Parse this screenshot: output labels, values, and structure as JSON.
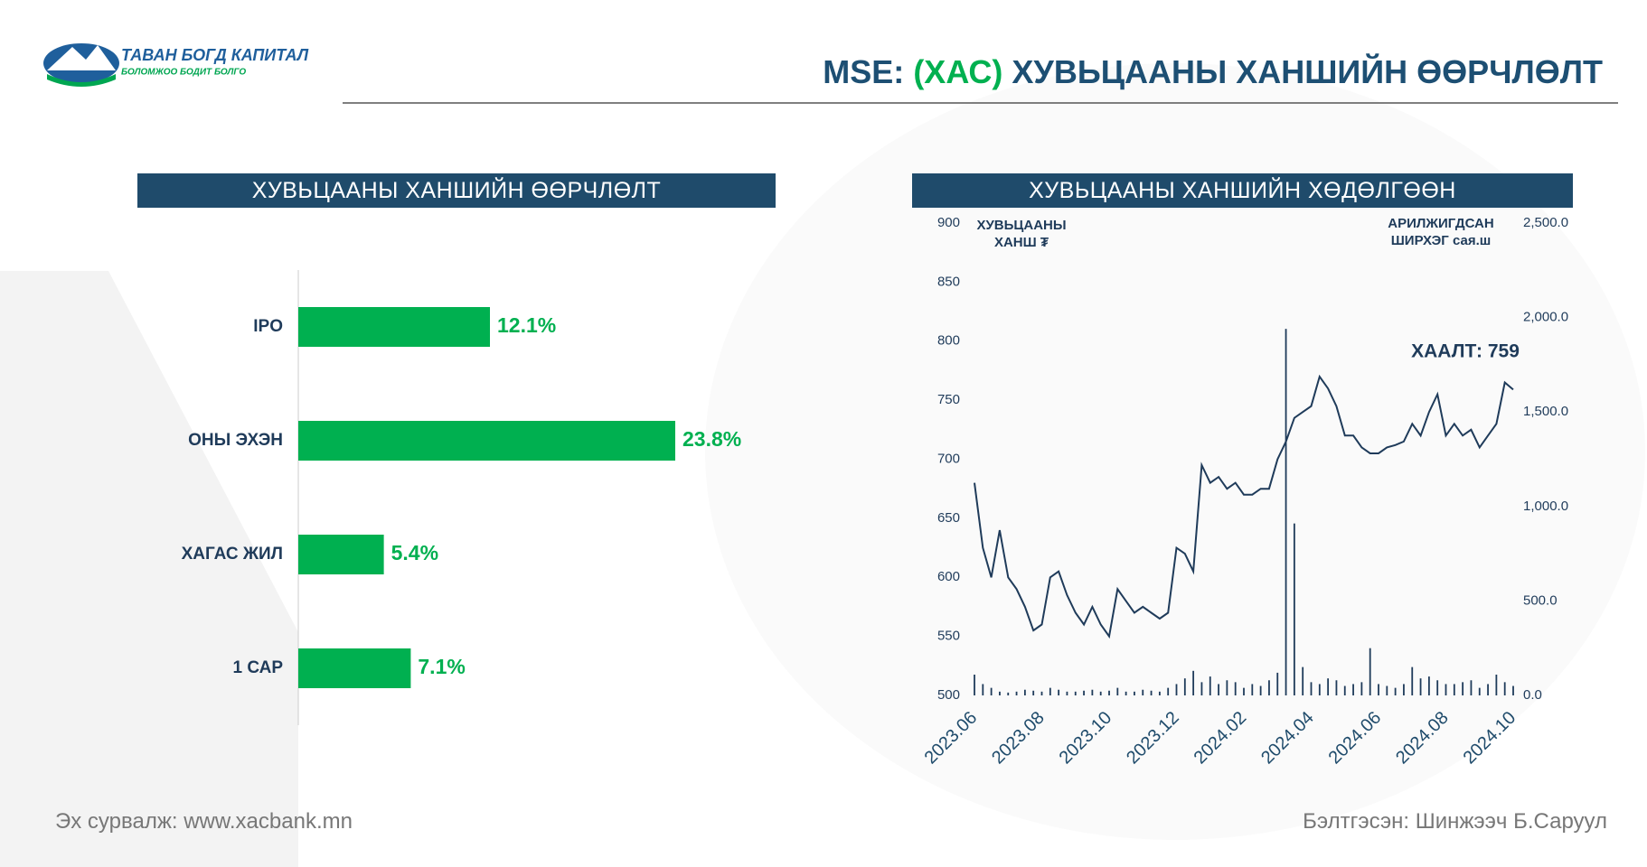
{
  "header": {
    "logo_name": "ТАВАН БОГД КАПИТАЛ",
    "logo_slogan": "БОЛОМЖОО БОДИТ БОЛГО",
    "title_prefix": "MSE:",
    "title_highlight": "(ХАС)",
    "title_rest": "ХУВЬЦААНЫ ХАНШИЙН ӨӨРЧЛӨЛТ"
  },
  "footer": {
    "source": "Эх сурвалж: www.xacbank.mn",
    "author": "Бэлтгэсэн: Шинжээч Б.Саруул"
  },
  "chart_data": [
    {
      "type": "bar",
      "orientation": "horizontal",
      "title": "ХУВЬЦААНЫ ХАНШИЙН ӨӨРЧЛӨЛТ",
      "categories": [
        "IPO",
        "ОНЫ ЭХЭН",
        "ХАГАС ЖИЛ",
        "1 САР"
      ],
      "values": [
        12.1,
        23.8,
        5.4,
        7.1
      ],
      "value_labels": [
        "12.1%",
        "23.8%",
        "5.4%",
        "7.1%"
      ],
      "color": "#00b050"
    },
    {
      "type": "line",
      "title": "ХУВЬЦААНЫ ХАНШИЙН ХӨДӨЛГӨӨН",
      "ylabel": "ХУВЬЦААНЫ ХАНШ ₮",
      "y2label": "АРИЛЖИГДСАН ШИРХЭГ сая.ш",
      "annotation": "ХААЛТ: 759",
      "categories": [
        "2023.06",
        null,
        null,
        null,
        null,
        null,
        null,
        null,
        "2023.08",
        null,
        null,
        null,
        null,
        null,
        null,
        null,
        "2023.10",
        null,
        null,
        null,
        null,
        null,
        null,
        null,
        "2023.12",
        null,
        null,
        null,
        null,
        null,
        null,
        null,
        "2024.02",
        null,
        null,
        null,
        null,
        null,
        null,
        null,
        "2024.04",
        null,
        null,
        null,
        null,
        null,
        null,
        null,
        "2024.06",
        null,
        null,
        null,
        null,
        null,
        null,
        null,
        "2024.08",
        null,
        null,
        null,
        null,
        null,
        null,
        null,
        "2024.10"
      ],
      "ylim": [
        500,
        900
      ],
      "yticks": [
        500,
        550,
        600,
        650,
        700,
        750,
        800,
        850,
        900
      ],
      "y2lim": [
        0,
        2500
      ],
      "y2ticks": [
        {
          "value": 0,
          "label": "0.0"
        },
        {
          "value": 500,
          "label": "500.0"
        },
        {
          "value": 1000,
          "label": "1,000.0"
        },
        {
          "value": 1500,
          "label": "1,500.0"
        },
        {
          "value": 2000,
          "label": "2,000.0"
        },
        {
          "value": 2500,
          "label": "2,500.0"
        }
      ],
      "series": [
        {
          "type": "line",
          "color": "#1f3b5a",
          "values": [
            680,
            625,
            600,
            640,
            600,
            590,
            575,
            555,
            560,
            600,
            605,
            585,
            570,
            560,
            575,
            560,
            550,
            590,
            580,
            570,
            575,
            570,
            565,
            570,
            625,
            620,
            605,
            695,
            680,
            685,
            675,
            680,
            670,
            670,
            675,
            675,
            700,
            715,
            735,
            740,
            745,
            770,
            760,
            745,
            720,
            720,
            710,
            705,
            705,
            710,
            712,
            715,
            730,
            720,
            740,
            755,
            720,
            730,
            720,
            725,
            710,
            720,
            730,
            765,
            759
          ]
        },
        {
          "type": "bar",
          "axis": "y2",
          "color": "#1f3b5a",
          "values": [
            110,
            60,
            40,
            20,
            15,
            20,
            30,
            25,
            20,
            40,
            30,
            20,
            20,
            25,
            30,
            20,
            25,
            40,
            20,
            20,
            30,
            25,
            20,
            40,
            60,
            90,
            130,
            70,
            100,
            60,
            80,
            70,
            40,
            60,
            50,
            80,
            120,
            1940,
            910,
            150,
            70,
            60,
            90,
            80,
            50,
            60,
            70,
            250,
            60,
            50,
            40,
            60,
            150,
            90,
            100,
            80,
            60,
            60,
            70,
            80,
            40,
            60,
            110,
            70,
            50
          ]
        }
      ]
    }
  ]
}
